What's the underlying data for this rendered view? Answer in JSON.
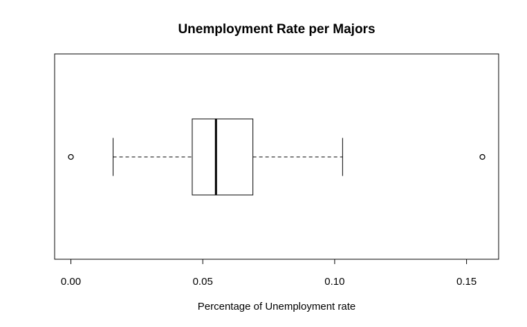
{
  "chart_data": {
    "type": "boxplot",
    "title": "Unemployment Rate per Majors",
    "xlabel": "Percentage of Unemployment rate",
    "ylabel": "",
    "orientation": "horizontal",
    "xlim": [
      0.0,
      0.156
    ],
    "x_ticks": [
      0.0,
      0.05,
      0.1,
      0.15
    ],
    "x_tick_labels": [
      "0.00",
      "0.05",
      "0.10",
      "0.15"
    ],
    "grid": false,
    "series": [
      {
        "whisker_low": 0.016,
        "q1": 0.046,
        "median": 0.055,
        "q3": 0.069,
        "whisker_high": 0.103,
        "outliers": [
          0.0,
          0.156
        ]
      }
    ]
  }
}
